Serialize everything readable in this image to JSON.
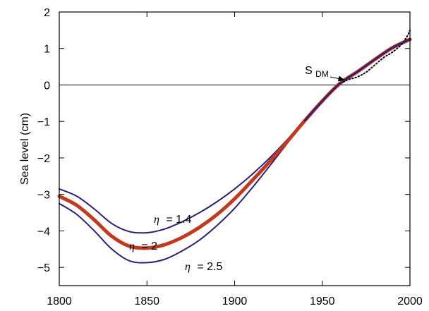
{
  "chart_data": {
    "type": "line",
    "title": "",
    "xlabel": "",
    "ylabel": "Sea level (cm)",
    "xlim": [
      1800,
      2000
    ],
    "ylim": [
      -5.5,
      2
    ],
    "x_ticks": [
      1800,
      1850,
      1900,
      1950,
      2000
    ],
    "y_ticks": [
      2,
      1,
      0,
      -1,
      -2,
      -3,
      -4,
      -5
    ],
    "y_tick_labels": [
      "2",
      "1",
      "0",
      "−1",
      "−2",
      "−3",
      "−4",
      "−5"
    ],
    "zero_line": true,
    "grid": false,
    "series": [
      {
        "name": "η = 1.4",
        "x": [
          1800,
          1810,
          1820,
          1830,
          1840,
          1850,
          1860,
          1870,
          1880,
          1890,
          1900,
          1910,
          1920,
          1930,
          1940,
          1950,
          1960,
          1970,
          1980,
          1990,
          2000
        ],
        "values": [
          -2.85,
          -3.05,
          -3.4,
          -3.8,
          -4.02,
          -4.05,
          -3.95,
          -3.75,
          -3.5,
          -3.2,
          -2.85,
          -2.45,
          -2.0,
          -1.5,
          -0.95,
          -0.42,
          0.05,
          0.38,
          0.72,
          1.02,
          1.25
        ]
      },
      {
        "name": "η = 2",
        "x": [
          1800,
          1810,
          1820,
          1830,
          1840,
          1850,
          1860,
          1870,
          1880,
          1890,
          1900,
          1910,
          1920,
          1930,
          1940,
          1950,
          1960,
          1970,
          1980,
          1990,
          2000
        ],
        "values": [
          -3.05,
          -3.3,
          -3.7,
          -4.15,
          -4.42,
          -4.47,
          -4.38,
          -4.18,
          -3.9,
          -3.55,
          -3.12,
          -2.62,
          -2.1,
          -1.55,
          -0.98,
          -0.44,
          0.04,
          0.36,
          0.7,
          1.02,
          1.25
        ]
      },
      {
        "name": "η = 2.5",
        "x": [
          1800,
          1810,
          1820,
          1830,
          1840,
          1850,
          1860,
          1870,
          1880,
          1890,
          1900,
          1910,
          1920,
          1930,
          1940,
          1950,
          1960,
          1970,
          1980,
          1990,
          2000
        ],
        "values": [
          -3.25,
          -3.55,
          -4.0,
          -4.5,
          -4.82,
          -4.87,
          -4.78,
          -4.55,
          -4.25,
          -3.85,
          -3.38,
          -2.82,
          -2.22,
          -1.6,
          -1.0,
          -0.45,
          0.03,
          0.35,
          0.68,
          1.0,
          1.25
        ]
      },
      {
        "name": "S_DM",
        "x": [
          1962,
          1965,
          1970,
          1975,
          1980,
          1985,
          1990,
          1995,
          1998,
          2000
        ],
        "values": [
          0.08,
          0.15,
          0.22,
          0.35,
          0.55,
          0.75,
          0.9,
          1.1,
          1.3,
          1.5
        ]
      }
    ],
    "annotations": {
      "sdm_label_main": "S",
      "sdm_label_sub": "DM",
      "eta_symbol": "η",
      "eta_14": "= 1.4",
      "eta_2": "= 2",
      "eta_25": "= 2.5"
    },
    "colors": {
      "thin_curves": "#2b1f7a",
      "central_curve": "#c23a1e",
      "dotted": "#000000",
      "zero_line": "#000000"
    }
  }
}
